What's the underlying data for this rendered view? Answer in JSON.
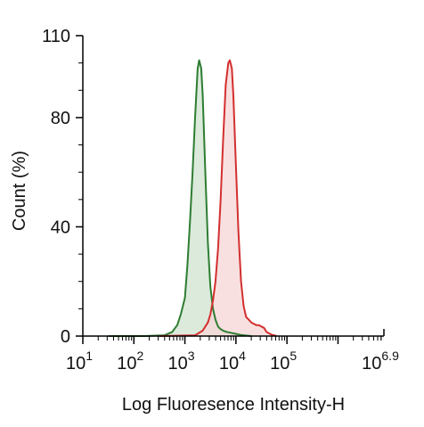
{
  "chart_data": {
    "type": "area",
    "title": "",
    "xlabel": "Log Fluoresence Intensity-H",
    "ylabel": "Count  (%)",
    "x_scale": "log10",
    "xlim": [
      1,
      6.9
    ],
    "ylim": [
      0,
      110
    ],
    "x_ticks": [
      {
        "base": "10",
        "exp": "1",
        "value": 1
      },
      {
        "base": "10",
        "exp": "2",
        "value": 2
      },
      {
        "base": "10",
        "exp": "3",
        "value": 3
      },
      {
        "base": "10",
        "exp": "4",
        "value": 4
      },
      {
        "base": "10",
        "exp": "5",
        "value": 5
      },
      {
        "base": "10",
        "exp": "6.9",
        "value": 6.9
      }
    ],
    "y_ticks": [
      {
        "label": "0",
        "value": 0
      },
      {
        "label": "40",
        "value": 40
      },
      {
        "label": "80",
        "value": 80
      },
      {
        "label": "110",
        "value": 110
      }
    ],
    "grid": false,
    "legend": "none",
    "series": [
      {
        "color": "#2e7d32",
        "fill": "#cfe3cf",
        "x": [
          1.5,
          2.2,
          2.6,
          2.75,
          2.85,
          2.92,
          3.0,
          3.05,
          3.1,
          3.15,
          3.2,
          3.25,
          3.28,
          3.32,
          3.35,
          3.4,
          3.45,
          3.5,
          3.55,
          3.6,
          3.65,
          3.7,
          3.75,
          3.8,
          3.9,
          4.0,
          4.1,
          4.3
        ],
        "y": [
          0,
          0,
          0.3,
          1.5,
          4,
          8,
          14,
          26,
          42,
          60,
          80,
          98,
          101,
          98,
          88,
          60,
          34,
          18,
          10,
          6,
          3.5,
          2.5,
          2,
          1.6,
          1.2,
          0.8,
          0.4,
          0
        ]
      },
      {
        "color": "#d32f2f",
        "fill": "#f6d6d6",
        "x": [
          2.5,
          3.2,
          3.35,
          3.45,
          3.5,
          3.55,
          3.6,
          3.65,
          3.7,
          3.75,
          3.8,
          3.85,
          3.88,
          3.92,
          3.95,
          4.0,
          4.05,
          4.1,
          4.15,
          4.2,
          4.25,
          4.3,
          4.35,
          4.4,
          4.45,
          4.5,
          4.55,
          4.6,
          4.7,
          4.8
        ],
        "y": [
          0,
          0.3,
          2,
          5,
          8,
          13,
          20,
          32,
          50,
          72,
          92,
          100,
          101,
          98,
          88,
          62,
          38,
          20,
          11,
          7,
          6,
          5,
          4.5,
          4,
          4,
          3.5,
          3,
          1.5,
          0.5,
          0
        ]
      }
    ]
  }
}
